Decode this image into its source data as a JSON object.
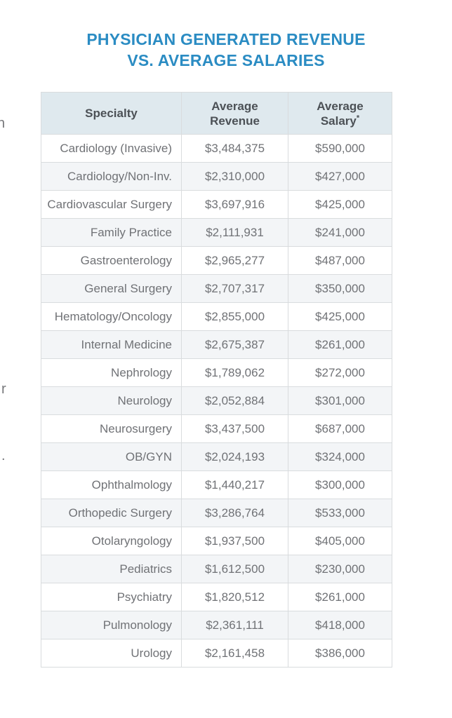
{
  "page": {
    "background": "#ffffff",
    "cut_fragments": {
      "fragment1": "h",
      "fragment2": "r",
      "fragment3": "."
    }
  },
  "title": {
    "line1": "PHYSICIAN GENERATED REVENUE",
    "line2": "VS. AVERAGE SALARIES"
  },
  "colors": {
    "title_blue": "#2b8cc3",
    "header_bg": "#dfe9ee",
    "header_text": "#4c5156",
    "row_text": "#707276",
    "row_alt_bg": "#f3f5f7",
    "border": "#d9dcde"
  },
  "table": {
    "header": {
      "specialty": "Specialty",
      "revenue_line1": "Average",
      "revenue_line2": "Revenue",
      "salary_line1": "Average",
      "salary_line2": "Salary",
      "salary_asterisk": "*"
    }
  },
  "chart_data": {
    "type": "table",
    "title": "PHYSICIAN GENERATED REVENUE VS. AVERAGE SALARIES",
    "columns": [
      "Specialty",
      "Average Revenue",
      "Average Salary*"
    ],
    "rows": [
      [
        "Cardiology (Invasive)",
        "$3,484,375",
        "$590,000"
      ],
      [
        "Cardiology/Non-Inv.",
        "$2,310,000",
        "$427,000"
      ],
      [
        "Cardiovascular Surgery",
        "$3,697,916",
        "$425,000"
      ],
      [
        "Family Practice",
        "$2,111,931",
        "$241,000"
      ],
      [
        "Gastroenterology",
        "$2,965,277",
        "$487,000"
      ],
      [
        "General Surgery",
        "$2,707,317",
        "$350,000"
      ],
      [
        "Hematology/Oncology",
        "$2,855,000",
        "$425,000"
      ],
      [
        "Internal Medicine",
        "$2,675,387",
        "$261,000"
      ],
      [
        "Nephrology",
        "$1,789,062",
        "$272,000"
      ],
      [
        "Neurology",
        "$2,052,884",
        "$301,000"
      ],
      [
        "Neurosurgery",
        "$3,437,500",
        "$687,000"
      ],
      [
        "OB/GYN",
        "$2,024,193",
        "$324,000"
      ],
      [
        "Ophthalmology",
        "$1,440,217",
        "$300,000"
      ],
      [
        "Orthopedic Surgery",
        "$3,286,764",
        "$533,000"
      ],
      [
        "Otolaryngology",
        "$1,937,500",
        "$405,000"
      ],
      [
        "Pediatrics",
        "$1,612,500",
        "$230,000"
      ],
      [
        "Psychiatry",
        "$1,820,512",
        "$261,000"
      ],
      [
        "Pulmonology",
        "$2,361,111",
        "$418,000"
      ],
      [
        "Urology",
        "$2,161,458",
        "$386,000"
      ]
    ]
  }
}
